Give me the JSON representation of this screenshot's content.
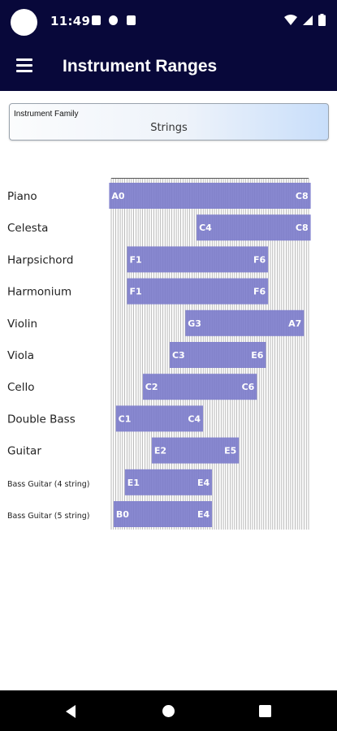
{
  "status_bar": {
    "time": "11:49",
    "notification_icons": [
      "photo-icon",
      "whatsapp-icon",
      "sim-icon"
    ],
    "right_icons": [
      "wifi-icon",
      "signal-icon",
      "battery-icon"
    ]
  },
  "app_bar": {
    "title": "Instrument Ranges",
    "menu_icon": "menu-icon"
  },
  "family_select": {
    "label": "Instrument Family",
    "value": "Strings"
  },
  "chart_data": {
    "type": "bar",
    "orientation": "horizontal-range",
    "x_scale": "piano keys A0 to C8 (88 keys), one gridline per key",
    "colors": {
      "bar": "#7b7bcb",
      "grid": "#a8a8a8",
      "label_text": "#ffffff",
      "category_text": "#222222"
    },
    "series": [
      {
        "instrument": "Piano",
        "low": "A0",
        "high": "C8"
      },
      {
        "instrument": "Celesta",
        "low": "C4",
        "high": "C8"
      },
      {
        "instrument": "Harpsichord",
        "low": "F1",
        "high": "F6"
      },
      {
        "instrument": "Harmonium",
        "low": "F1",
        "high": "F6"
      },
      {
        "instrument": "Violin",
        "low": "G3",
        "high": "A7"
      },
      {
        "instrument": "Viola",
        "low": "C3",
        "high": "E6"
      },
      {
        "instrument": "Cello",
        "low": "C2",
        "high": "C6"
      },
      {
        "instrument": "Double Bass",
        "low": "C1",
        "high": "C4"
      },
      {
        "instrument": "Guitar",
        "low": "E2",
        "high": "E5"
      },
      {
        "instrument": "Bass Guitar (4 string)",
        "low": "E1",
        "high": "E4"
      },
      {
        "instrument": "Bass Guitar (5 string)",
        "low": "B0",
        "high": "E4"
      }
    ]
  },
  "nav_bar": {
    "buttons": [
      "back-icon",
      "home-icon",
      "recents-icon"
    ]
  }
}
